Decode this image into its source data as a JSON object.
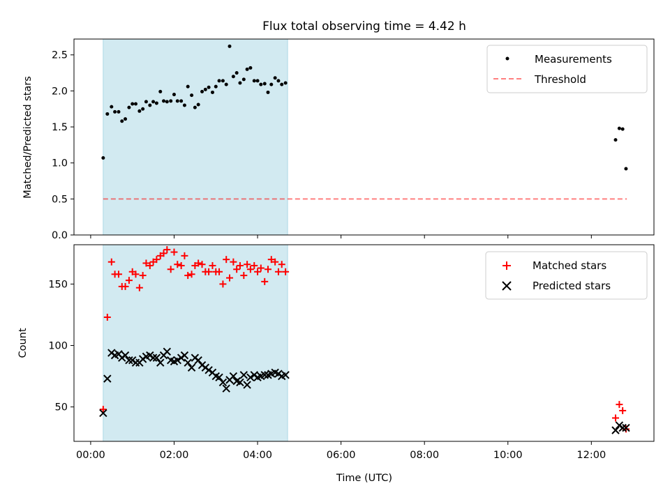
{
  "title": "Flux total observing time = 4.42 h",
  "colors": {
    "span": "#add8e6",
    "threshold": "#ff0000",
    "matched": "#ff0000",
    "predicted": "#000000",
    "measurement": "#000000"
  },
  "chart_data": [
    {
      "type": "scatter",
      "ylabel": "Matched/Predicted stars",
      "xlabel": "",
      "xlim": [
        -0.4,
        13.5
      ],
      "ylim": [
        0,
        2.72
      ],
      "yticks": [
        "0.0",
        "0.5",
        "1.0",
        "1.5",
        "2.0",
        "2.5"
      ],
      "grid": false,
      "legend": "top-right",
      "shaded_span": [
        0.3,
        4.72
      ],
      "threshold_line": {
        "name": "Threshold",
        "y": 0.5,
        "x": [
          0.3,
          12.85
        ],
        "style": "dashed"
      },
      "series": [
        {
          "name": "Measurements",
          "marker": "dot",
          "x": [
            0.3,
            0.4,
            0.5,
            0.58,
            0.67,
            0.75,
            0.83,
            0.92,
            1.0,
            1.08,
            1.17,
            1.25,
            1.33,
            1.42,
            1.5,
            1.58,
            1.67,
            1.75,
            1.83,
            1.92,
            2.0,
            2.08,
            2.17,
            2.25,
            2.33,
            2.42,
            2.5,
            2.58,
            2.67,
            2.75,
            2.83,
            2.92,
            3.0,
            3.08,
            3.17,
            3.25,
            3.33,
            3.42,
            3.5,
            3.58,
            3.67,
            3.75,
            3.83,
            3.92,
            4.0,
            4.08,
            4.17,
            4.25,
            4.33,
            4.42,
            4.5,
            4.58,
            4.67,
            12.58,
            12.67,
            12.75,
            12.83
          ],
          "y": [
            1.07,
            1.68,
            1.78,
            1.71,
            1.71,
            1.58,
            1.61,
            1.77,
            1.82,
            1.82,
            1.72,
            1.75,
            1.85,
            1.8,
            1.85,
            1.83,
            1.99,
            1.86,
            1.85,
            1.86,
            1.95,
            1.86,
            1.86,
            1.8,
            2.06,
            1.94,
            1.77,
            1.81,
            1.99,
            2.02,
            2.05,
            1.98,
            2.06,
            2.14,
            2.14,
            2.09,
            2.62,
            2.2,
            2.25,
            2.11,
            2.16,
            2.3,
            2.32,
            2.14,
            2.14,
            2.09,
            2.1,
            1.98,
            2.09,
            2.18,
            2.14,
            2.09,
            2.11,
            1.32,
            1.48,
            1.47,
            0.92
          ]
        }
      ]
    },
    {
      "type": "scatter",
      "ylabel": "Count",
      "xlabel": "Time (UTC)",
      "xlim": [
        -0.4,
        13.5
      ],
      "ylim": [
        22,
        182
      ],
      "yticks": [
        "50",
        "100",
        "150"
      ],
      "xticks": [
        "00:00",
        "02:00",
        "04:00",
        "06:00",
        "08:00",
        "10:00",
        "12:00"
      ],
      "grid": false,
      "legend": "top-right",
      "shaded_span": [
        0.3,
        4.72
      ],
      "series": [
        {
          "name": "Matched stars",
          "marker": "plus",
          "x": [
            0.3,
            0.4,
            0.5,
            0.58,
            0.67,
            0.75,
            0.83,
            0.92,
            1.0,
            1.08,
            1.17,
            1.25,
            1.33,
            1.42,
            1.5,
            1.58,
            1.67,
            1.75,
            1.83,
            1.92,
            2.0,
            2.08,
            2.17,
            2.25,
            2.33,
            2.42,
            2.5,
            2.58,
            2.67,
            2.75,
            2.83,
            2.92,
            3.0,
            3.08,
            3.17,
            3.25,
            3.33,
            3.42,
            3.5,
            3.58,
            3.67,
            3.75,
            3.83,
            3.92,
            4.0,
            4.08,
            4.17,
            4.25,
            4.33,
            4.42,
            4.5,
            4.58,
            4.67,
            12.58,
            12.67,
            12.75,
            12.83
          ],
          "y": [
            48,
            123,
            168,
            158,
            158,
            148,
            148,
            153,
            160,
            158,
            147,
            157,
            167,
            165,
            168,
            170,
            173,
            175,
            178,
            162,
            176,
            166,
            165,
            173,
            157,
            158,
            165,
            167,
            166,
            160,
            160,
            165,
            160,
            160,
            150,
            170,
            155,
            168,
            162,
            165,
            157,
            166,
            162,
            165,
            160,
            163,
            152,
            162,
            170,
            168,
            160,
            166,
            160,
            41,
            52,
            47,
            32
          ]
        },
        {
          "name": "Predicted stars",
          "marker": "x",
          "x": [
            0.3,
            0.4,
            0.5,
            0.58,
            0.67,
            0.75,
            0.83,
            0.92,
            1.0,
            1.08,
            1.17,
            1.25,
            1.33,
            1.42,
            1.5,
            1.58,
            1.67,
            1.75,
            1.83,
            1.92,
            2.0,
            2.08,
            2.17,
            2.25,
            2.33,
            2.42,
            2.5,
            2.58,
            2.67,
            2.75,
            2.83,
            2.92,
            3.0,
            3.08,
            3.17,
            3.25,
            3.33,
            3.42,
            3.5,
            3.58,
            3.67,
            3.75,
            3.83,
            3.92,
            4.0,
            4.08,
            4.17,
            4.25,
            4.33,
            4.42,
            4.5,
            4.58,
            4.67,
            12.58,
            12.67,
            12.75,
            12.83
          ],
          "y": [
            45,
            73,
            94,
            92,
            93,
            90,
            92,
            88,
            88,
            86,
            86,
            89,
            91,
            92,
            90,
            90,
            86,
            92,
            95,
            88,
            87,
            88,
            90,
            92,
            86,
            82,
            90,
            88,
            84,
            82,
            80,
            78,
            75,
            74,
            70,
            65,
            72,
            75,
            71,
            70,
            76,
            68,
            74,
            76,
            74,
            75,
            76,
            76,
            77,
            78,
            77,
            75,
            76,
            31,
            35,
            33,
            33
          ]
        }
      ]
    }
  ]
}
